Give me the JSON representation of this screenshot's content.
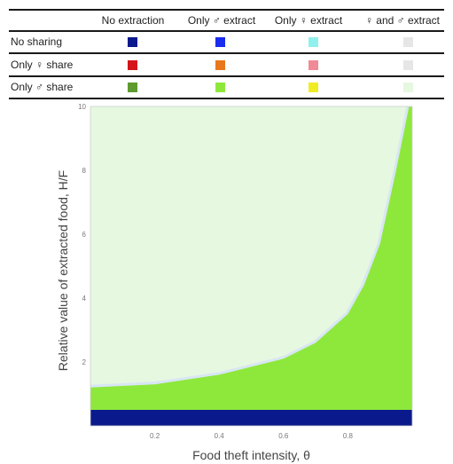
{
  "legend": {
    "columns": [
      "No extraction",
      "Only ♂ extract",
      "Only ♀ extract",
      "♀ and ♂ extract"
    ],
    "rows": [
      {
        "label": "No sharing",
        "colors": [
          "#0a1a8c",
          "#1a2cf0",
          "#8ff0ec",
          "#e6e6e6"
        ]
      },
      {
        "label": "Only ♀ share",
        "colors": [
          "#d4141c",
          "#e8781c",
          "#f08a96",
          "#e6e6e6"
        ]
      },
      {
        "label": "Only ♂ share",
        "colors": [
          "#5e9a2e",
          "#8ee83c",
          "#f0ec24",
          "#e6f8e0"
        ]
      }
    ]
  },
  "chart_data": {
    "type": "heatmap",
    "xlabel": "Food theft intensity, θ",
    "ylabel": "Relative value of extracted food, H/F",
    "xlim": [
      0,
      1
    ],
    "ylim": [
      0,
      10
    ],
    "xticks": [
      "0.2",
      "0.4",
      "0.6",
      "0.8"
    ],
    "yticks": [
      "2",
      "4",
      "6",
      "8",
      "10"
    ],
    "regions": [
      {
        "label": "Only ♂ share, ♀ and ♂ extract",
        "color": "#e6f8e0",
        "description": "background region"
      },
      {
        "label": "Only ♂ share, Only ♂ extract",
        "color": "#8ee83c",
        "boundary_theta": [
          0,
          0.2,
          0.4,
          0.6,
          0.7,
          0.8,
          0.85,
          0.9,
          0.95,
          0.99
        ],
        "boundary_ratio": [
          1.2,
          1.3,
          1.6,
          2.1,
          2.6,
          3.5,
          4.4,
          5.7,
          8.0,
          10.0
        ]
      },
      {
        "label": "No sharing, No extraction",
        "color": "#0a1a8c",
        "ratio_range": [
          0,
          0.5
        ]
      }
    ],
    "transition_color": "#d8e6f4"
  }
}
